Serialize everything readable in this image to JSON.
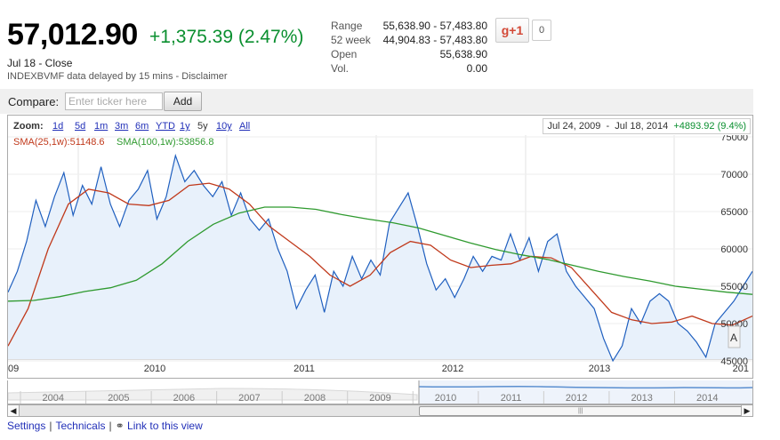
{
  "quote": {
    "price": "57,012.90",
    "change": "+1,375.39 (2.47%)",
    "close_line": "Jul 18 - Close",
    "delayed_line": "INDEXBVMF data delayed by 15 mins - Disclaimer",
    "change_color": "#0a8f2f"
  },
  "stats": [
    {
      "label": "Range",
      "value": "55,638.90 - 57,483.80"
    },
    {
      "label": "52 week",
      "value": "44,904.83 - 57,483.80"
    },
    {
      "label": "Open",
      "value": "55,638.90"
    },
    {
      "label": "Vol.",
      "value": "0.00"
    }
  ],
  "social": {
    "gplus_label": "g+1",
    "count": "0"
  },
  "compare": {
    "label": "Compare:",
    "placeholder": "Enter ticker here",
    "button": "Add"
  },
  "zoom": {
    "label": "Zoom:",
    "options": [
      "1d",
      "5d",
      "1m",
      "3m",
      "6m",
      "YTD",
      "1y",
      "5y",
      "10y",
      "All"
    ],
    "selected": "5y",
    "range_start": "Jul 24, 2009",
    "range_sep": "-",
    "range_end": "Jul 18, 2014",
    "range_change": "+4893.92 (9.4%)"
  },
  "legend": {
    "sma25": "SMA(25,1w):51148.6",
    "sma100": "SMA(100,1w):53856.8",
    "sma25_color": "#c0391b",
    "sma100_color": "#2f9a2f"
  },
  "chart_data": {
    "type": "line",
    "x_tick_labels": [
      "09",
      "2010",
      "2011",
      "2012",
      "2013",
      "201"
    ],
    "y_tick_labels": [
      "75000",
      "70000",
      "65000",
      "60000",
      "55000",
      "50000",
      "45000"
    ],
    "ylim": [
      45000,
      75000
    ],
    "series": [
      {
        "name": "price",
        "color": "#1f5fbf",
        "fill": "#e8f1fb",
        "values": [
          54200,
          57000,
          61000,
          66500,
          63000,
          67000,
          70200,
          64500,
          68500,
          66000,
          71000,
          66000,
          63000,
          66500,
          68000,
          70500,
          64000,
          67000,
          72500,
          69000,
          70500,
          68500,
          67000,
          69000,
          64500,
          67500,
          64000,
          62500,
          64000,
          60000,
          57000,
          52000,
          54500,
          56500,
          51500,
          57000,
          55000,
          59000,
          56000,
          58500,
          56500,
          63500,
          65500,
          67500,
          63000,
          58000,
          54500,
          56000,
          53500,
          56000,
          59000,
          57000,
          59000,
          58500,
          62000,
          58500,
          61500,
          57000,
          61000,
          62000,
          57000,
          55000,
          53500,
          52000,
          48000,
          45000,
          47000,
          52000,
          50000,
          53000,
          54000,
          53000,
          50000,
          49000,
          47500,
          45500,
          50000,
          51500,
          53000,
          55000,
          57000
        ]
      },
      {
        "name": "SMA(25,1w)",
        "color": "#c0391b",
        "values": [
          47000,
          52000,
          60000,
          66000,
          68000,
          67500,
          66000,
          65800,
          66500,
          68500,
          68800,
          68000,
          66000,
          63000,
          61000,
          59000,
          56500,
          55000,
          56500,
          59500,
          61000,
          60500,
          58500,
          57500,
          57800,
          58000,
          59000,
          58800,
          57500,
          54500,
          51500,
          50500,
          50000,
          50200,
          51000,
          50000,
          49800,
          51000
        ]
      },
      {
        "name": "SMA(100,1w)",
        "color": "#2f9a2f",
        "values": [
          53000,
          53100,
          53600,
          54300,
          54800,
          55800,
          58000,
          61000,
          63300,
          64800,
          65600,
          65600,
          65300,
          64600,
          64000,
          63500,
          62800,
          61800,
          60800,
          59900,
          59200,
          58600,
          57800,
          57000,
          56300,
          55700,
          55000,
          54600,
          54200,
          53900
        ]
      }
    ]
  },
  "navigator": {
    "years": [
      "2004",
      "2005",
      "2006",
      "2007",
      "2008",
      "2009",
      "2010",
      "2011",
      "2012",
      "2013",
      "2014"
    ]
  },
  "footer": {
    "settings": "Settings",
    "technicals": "Technicals",
    "link": "Link to this view"
  }
}
